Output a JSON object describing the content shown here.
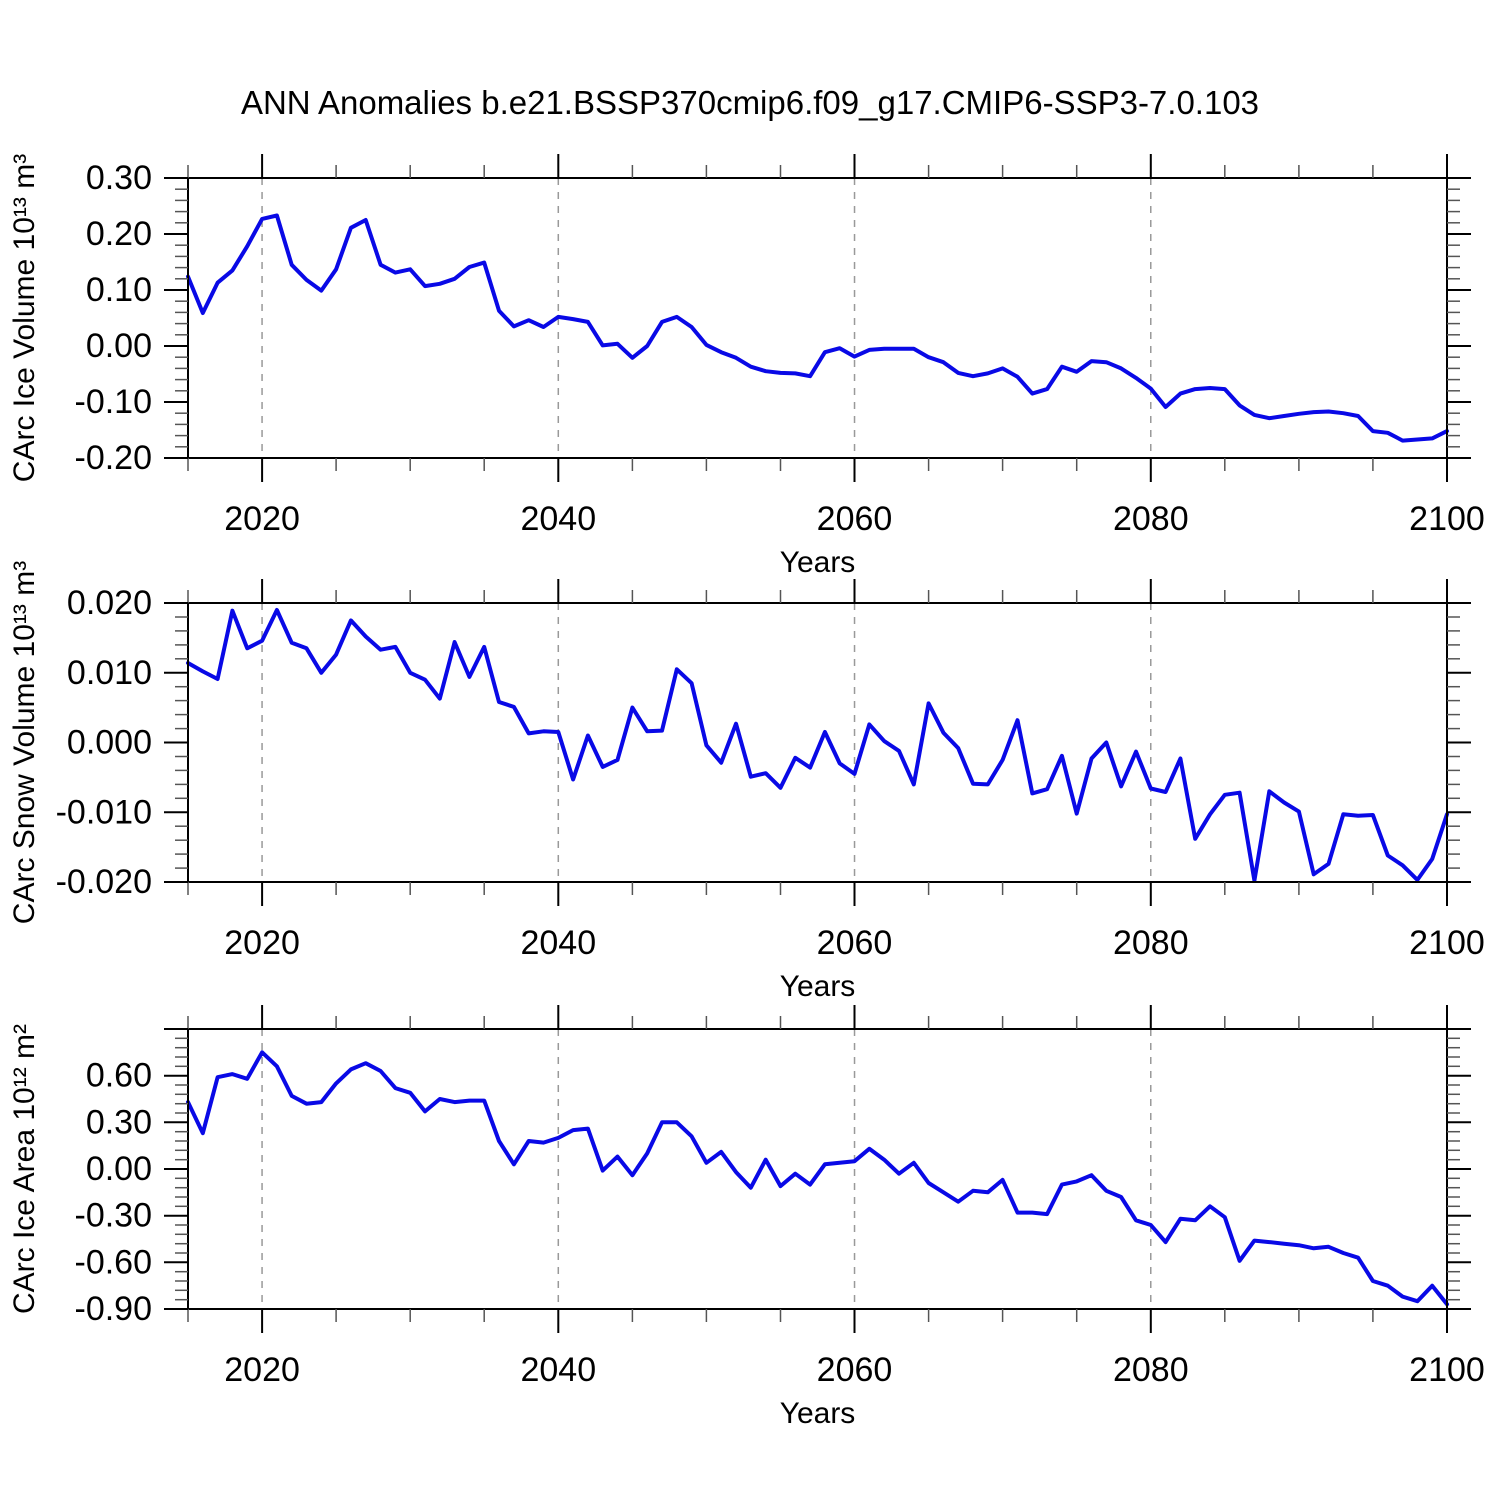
{
  "chart_data": {
    "type": "line",
    "title": "ANN Anomalies b.e21.BSSP370cmip6.f09_g17.CMIP6-SSP3-7.0.103",
    "legend": "none",
    "grid": "dashed vertical gridlines at decades 2020-2080",
    "colors": {
      "line": "#0909e6",
      "grid": "#999999",
      "axis": "#000000",
      "minor_tick": "#555555"
    },
    "x": {
      "label": "Years",
      "start": 2015,
      "end": 2100,
      "major_ticks": [
        2020,
        2040,
        2060,
        2080,
        2100
      ],
      "major_tick_labels": [
        "2020",
        "2040",
        "2060",
        "2080",
        "2100"
      ],
      "minor_step": 5,
      "dashed_gridlines": [
        2020,
        2040,
        2060,
        2080
      ]
    },
    "years": [
      2015,
      2016,
      2017,
      2018,
      2019,
      2020,
      2021,
      2022,
      2023,
      2024,
      2025,
      2026,
      2027,
      2028,
      2029,
      2030,
      2031,
      2032,
      2033,
      2034,
      2035,
      2036,
      2037,
      2038,
      2039,
      2040,
      2041,
      2042,
      2043,
      2044,
      2045,
      2046,
      2047,
      2048,
      2049,
      2050,
      2051,
      2052,
      2053,
      2054,
      2055,
      2056,
      2057,
      2058,
      2059,
      2060,
      2061,
      2062,
      2063,
      2064,
      2065,
      2066,
      2067,
      2068,
      2069,
      2070,
      2071,
      2072,
      2073,
      2074,
      2075,
      2076,
      2077,
      2078,
      2079,
      2080,
      2081,
      2082,
      2083,
      2084,
      2085,
      2086,
      2087,
      2088,
      2089,
      2090,
      2091,
      2092,
      2093,
      2094,
      2095,
      2096,
      2097,
      2098,
      2099,
      2100
    ],
    "panels": [
      {
        "ylabel": "CArc Ice Volume 10¹³ m³",
        "ylim": [
          -0.2,
          0.3
        ],
        "ytick_values": [
          0.3,
          0.2,
          0.1,
          0.0,
          -0.1,
          -0.2
        ],
        "ytick_labels": [
          "0.30",
          "0.20",
          "0.10",
          "0.00",
          "-0.10",
          "-0.20"
        ],
        "yminor_step": 0.02,
        "values": [
          0.124,
          0.059,
          0.113,
          0.135,
          0.178,
          0.227,
          0.233,
          0.145,
          0.118,
          0.099,
          0.137,
          0.211,
          0.225,
          0.145,
          0.131,
          0.137,
          0.107,
          0.111,
          0.12,
          0.141,
          0.149,
          0.063,
          0.035,
          0.046,
          0.034,
          0.052,
          0.048,
          0.043,
          0.001,
          0.004,
          -0.021,
          0.0,
          0.043,
          0.052,
          0.034,
          0.002,
          -0.011,
          -0.021,
          -0.037,
          -0.045,
          -0.048,
          -0.049,
          -0.054,
          -0.011,
          -0.004,
          -0.019,
          -0.007,
          -0.005,
          -0.005,
          -0.005,
          -0.02,
          -0.029,
          -0.048,
          -0.054,
          -0.049,
          -0.04,
          -0.055,
          -0.085,
          -0.077,
          -0.037,
          -0.046,
          -0.027,
          -0.029,
          -0.04,
          -0.057,
          -0.076,
          -0.109,
          -0.085,
          -0.077,
          -0.075,
          -0.077,
          -0.106,
          -0.123,
          -0.129,
          -0.125,
          -0.121,
          -0.118,
          -0.117,
          -0.12,
          -0.125,
          -0.152,
          -0.155,
          -0.169,
          -0.167,
          -0.165,
          -0.152
        ]
      },
      {
        "ylabel": "CArc Snow Volume 10¹³ m³",
        "ylim": [
          -0.02,
          0.02
        ],
        "ytick_values": [
          0.02,
          0.01,
          0.0,
          -0.01,
          -0.02
        ],
        "ytick_labels": [
          "0.020",
          "0.010",
          "0.000",
          "-0.010",
          "-0.020"
        ],
        "yminor_step": 0.002,
        "values": [
          0.0114,
          0.0102,
          0.0091,
          0.0189,
          0.0135,
          0.0146,
          0.019,
          0.0143,
          0.0135,
          0.01,
          0.0126,
          0.0175,
          0.0152,
          0.0133,
          0.0137,
          0.01,
          0.009,
          0.0063,
          0.0144,
          0.0094,
          0.0137,
          0.0058,
          0.0051,
          0.0013,
          0.0016,
          0.0015,
          -0.0053,
          0.001,
          -0.0035,
          -0.0025,
          0.005,
          0.0016,
          0.0017,
          0.0105,
          0.0085,
          -0.0004,
          -0.0029,
          0.0027,
          -0.0049,
          -0.0044,
          -0.0065,
          -0.0022,
          -0.0036,
          0.0015,
          -0.003,
          -0.0045,
          0.0026,
          0.0002,
          -0.0012,
          -0.006,
          0.0056,
          0.0014,
          -0.0008,
          -0.0059,
          -0.006,
          -0.0025,
          0.0032,
          -0.0073,
          -0.0067,
          -0.0019,
          -0.0102,
          -0.0023,
          0.0,
          -0.0063,
          -0.0013,
          -0.0066,
          -0.0071,
          -0.0023,
          -0.0138,
          -0.0103,
          -0.0075,
          -0.0072,
          -0.0198,
          -0.007,
          -0.0086,
          -0.0099,
          -0.0189,
          -0.0174,
          -0.0103,
          -0.0105,
          -0.0104,
          -0.0162,
          -0.0176,
          -0.0197,
          -0.0167,
          -0.0103
        ]
      },
      {
        "ylabel": "CArc Ice Area 10¹² m²",
        "ylim": [
          -0.9,
          0.9
        ],
        "ytick_values": [
          0.9,
          0.6,
          0.3,
          0.0,
          -0.3,
          -0.6,
          -0.9
        ],
        "ytick_labels": [
          "",
          "0.60",
          "0.30",
          "0.00",
          "-0.30",
          "-0.60",
          "-0.90"
        ],
        "yminor_step": 0.06,
        "values": [
          0.43,
          0.23,
          0.59,
          0.61,
          0.58,
          0.75,
          0.66,
          0.47,
          0.42,
          0.43,
          0.55,
          0.64,
          0.68,
          0.63,
          0.52,
          0.49,
          0.37,
          0.45,
          0.43,
          0.44,
          0.44,
          0.18,
          0.03,
          0.18,
          0.17,
          0.2,
          0.25,
          0.26,
          -0.01,
          0.08,
          -0.04,
          0.1,
          0.3,
          0.3,
          0.21,
          0.04,
          0.11,
          -0.02,
          -0.12,
          0.06,
          -0.11,
          -0.03,
          -0.1,
          0.03,
          0.04,
          0.05,
          0.13,
          0.06,
          -0.03,
          0.04,
          -0.09,
          -0.15,
          -0.21,
          -0.14,
          -0.15,
          -0.07,
          -0.28,
          -0.28,
          -0.29,
          -0.1,
          -0.08,
          -0.04,
          -0.14,
          -0.18,
          -0.33,
          -0.36,
          -0.47,
          -0.32,
          -0.33,
          -0.24,
          -0.31,
          -0.59,
          -0.46,
          -0.47,
          -0.48,
          -0.49,
          -0.51,
          -0.5,
          -0.54,
          -0.57,
          -0.72,
          -0.75,
          -0.82,
          -0.85,
          -0.75,
          -0.87
        ]
      }
    ]
  }
}
